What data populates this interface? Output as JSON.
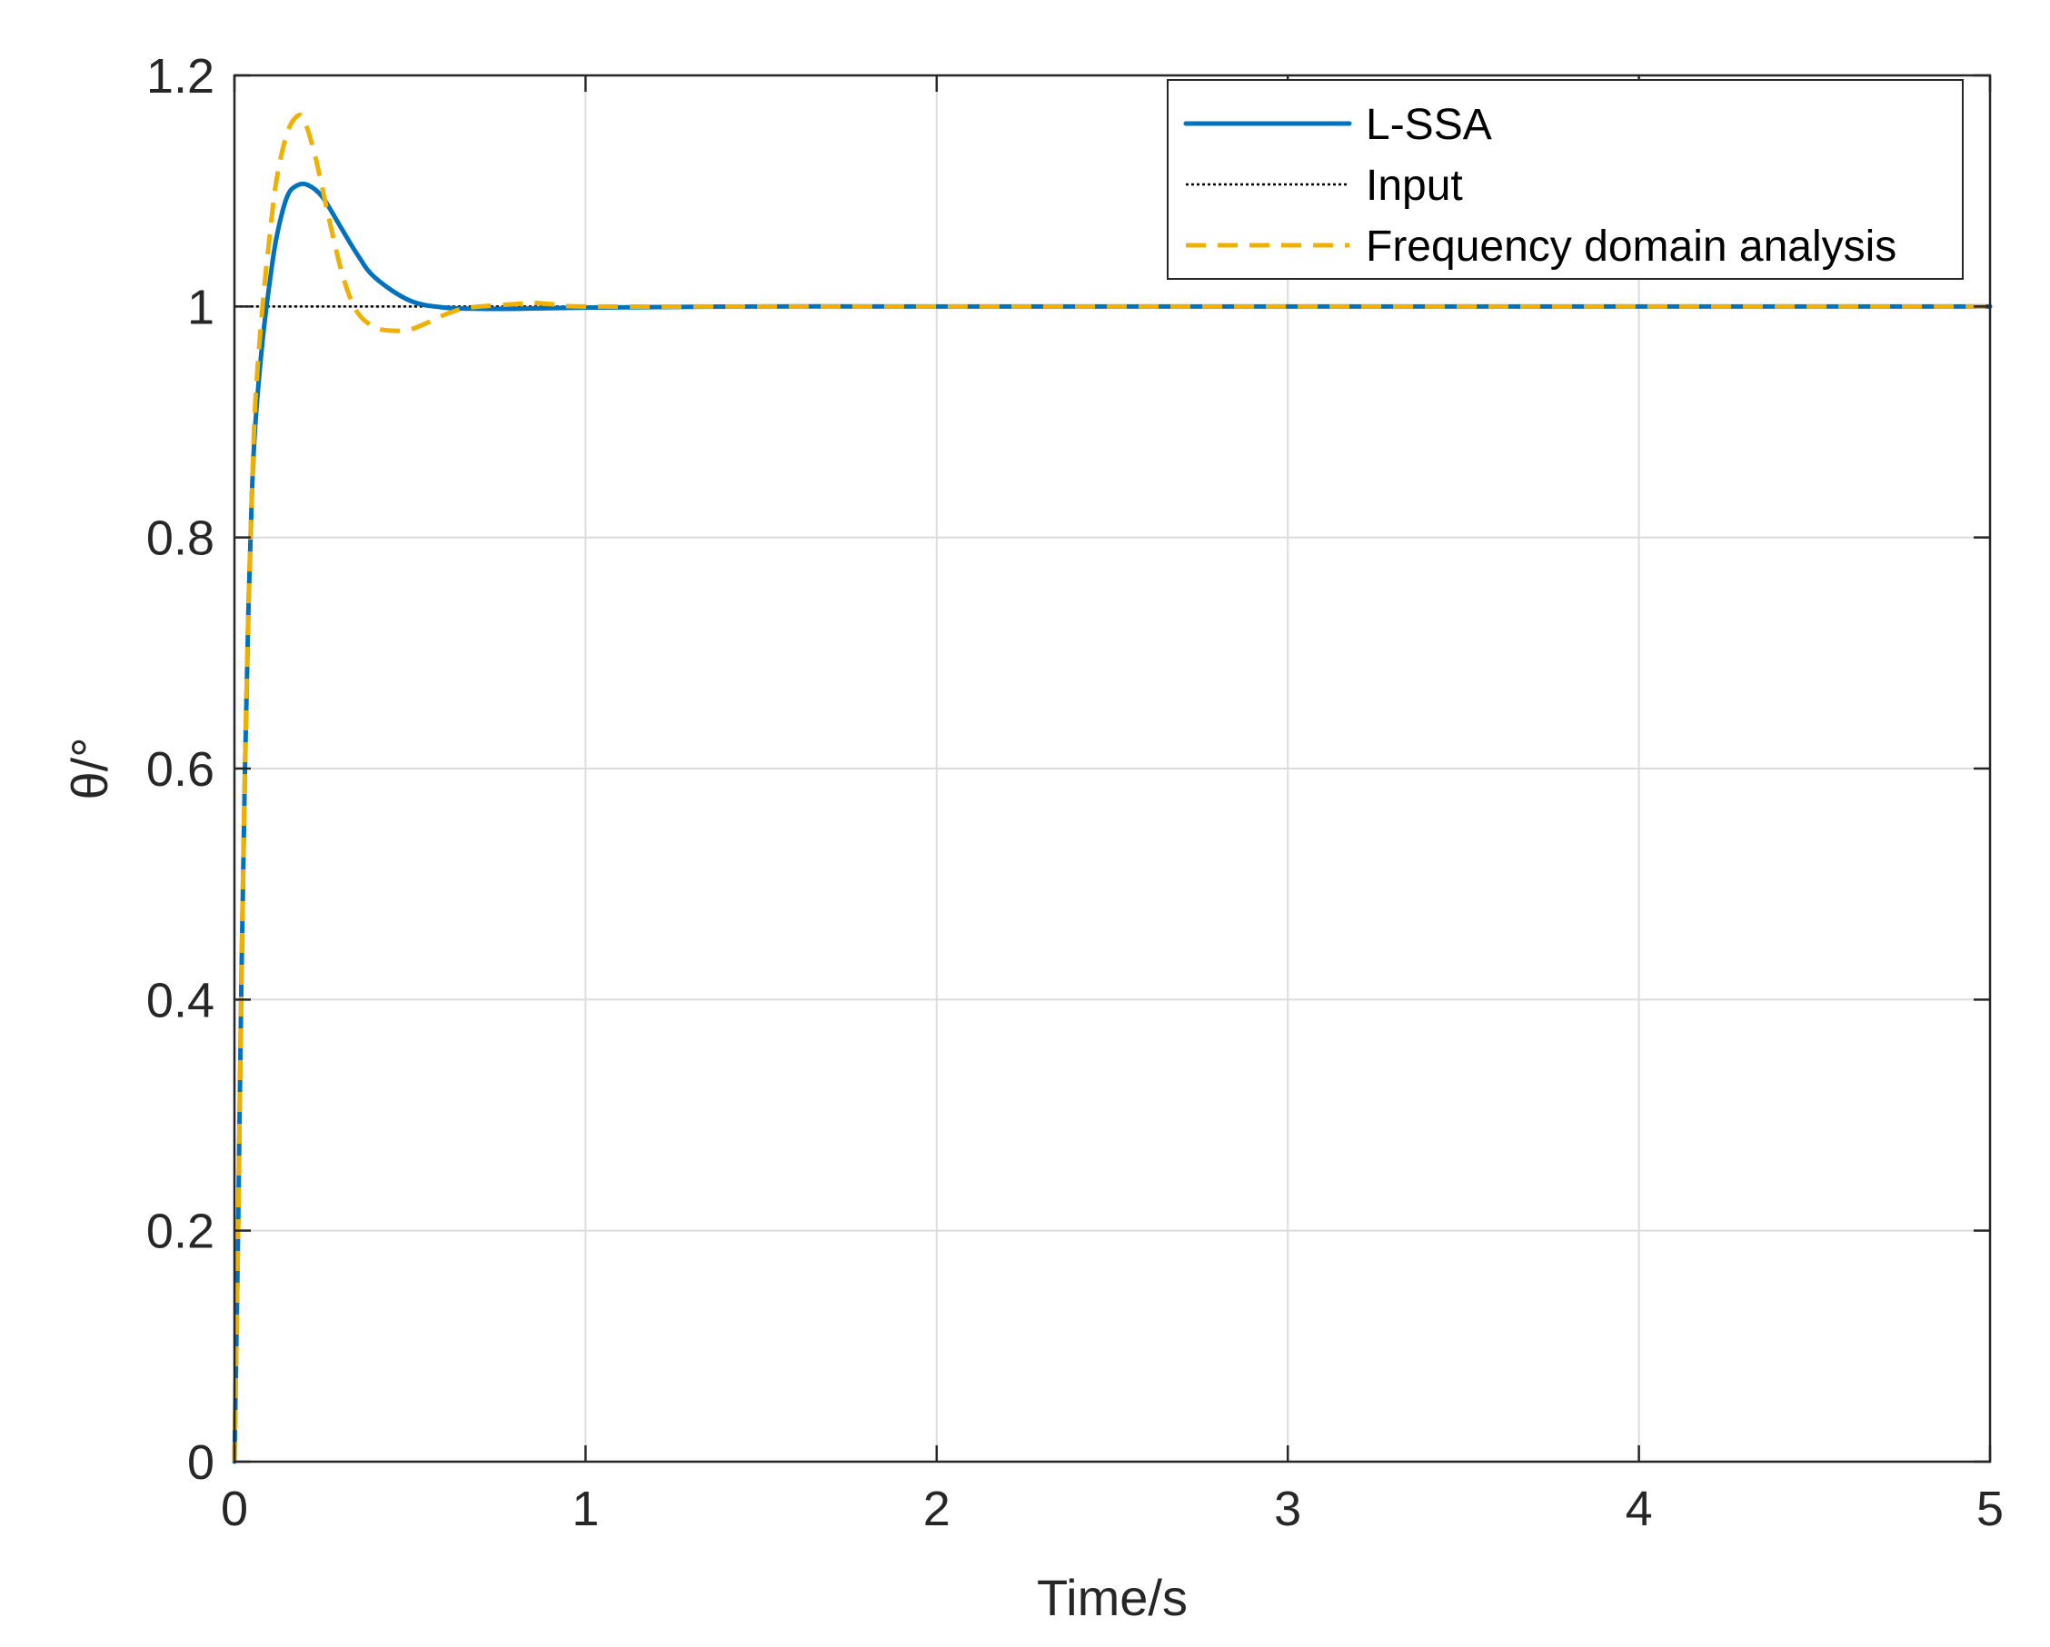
{
  "chart_data": {
    "type": "line",
    "title": "",
    "xlabel": "Time/s",
    "ylabel": "θ/°",
    "xlim": [
      0,
      5
    ],
    "ylim": [
      0,
      1.2
    ],
    "xticks": [
      0,
      1,
      2,
      3,
      4,
      5
    ],
    "xtick_labels": [
      "0",
      "1",
      "2",
      "3",
      "4",
      "5"
    ],
    "yticks": [
      0,
      0.2,
      0.4,
      0.6,
      0.8,
      1,
      1.2
    ],
    "ytick_labels": [
      "0",
      "0.2",
      "0.4",
      "0.6",
      "0.8",
      "1",
      "1.2"
    ],
    "grid": true,
    "legend_position": "top-right",
    "series": [
      {
        "name": "L-SSA",
        "color": "#0072BD",
        "style": "solid",
        "x": [
          0,
          0.01,
          0.02,
          0.03,
          0.04,
          0.05,
          0.06,
          0.08,
          0.1,
          0.12,
          0.15,
          0.18,
          0.21,
          0.25,
          0.3,
          0.35,
          0.4,
          0.5,
          0.6,
          0.7,
          0.8,
          1.0,
          1.5,
          2,
          3,
          4,
          5
        ],
        "y": [
          0,
          0.19,
          0.42,
          0.6,
          0.74,
          0.84,
          0.9,
          0.97,
          1.02,
          1.06,
          1.095,
          1.105,
          1.105,
          1.095,
          1.07,
          1.045,
          1.025,
          1.005,
          0.999,
          0.998,
          0.998,
          0.999,
          1.0,
          1.0,
          1.0,
          1.0,
          1.0
        ]
      },
      {
        "name": "Input",
        "color": "#000000",
        "style": "dotted",
        "x": [
          0,
          5
        ],
        "y": [
          1,
          1
        ]
      },
      {
        "name": "Frequency domain analysis",
        "color": "#F0B000",
        "style": "dashed",
        "x": [
          0,
          0.01,
          0.02,
          0.03,
          0.04,
          0.05,
          0.06,
          0.08,
          0.1,
          0.12,
          0.15,
          0.18,
          0.2,
          0.23,
          0.27,
          0.31,
          0.35,
          0.4,
          0.45,
          0.5,
          0.55,
          0.6,
          0.65,
          0.7,
          0.8,
          0.85,
          0.9,
          1.0,
          1.5,
          2,
          3,
          4,
          5
        ],
        "y": [
          0,
          0.19,
          0.42,
          0.6,
          0.74,
          0.84,
          0.92,
          1.0,
          1.06,
          1.11,
          1.15,
          1.165,
          1.16,
          1.13,
          1.075,
          1.025,
          0.995,
          0.982,
          0.979,
          0.98,
          0.986,
          0.993,
          0.998,
          1.0,
          1.002,
          1.003,
          1.002,
          1.0,
          1.0,
          1.0,
          1.0,
          1.0,
          1.0
        ]
      }
    ]
  }
}
